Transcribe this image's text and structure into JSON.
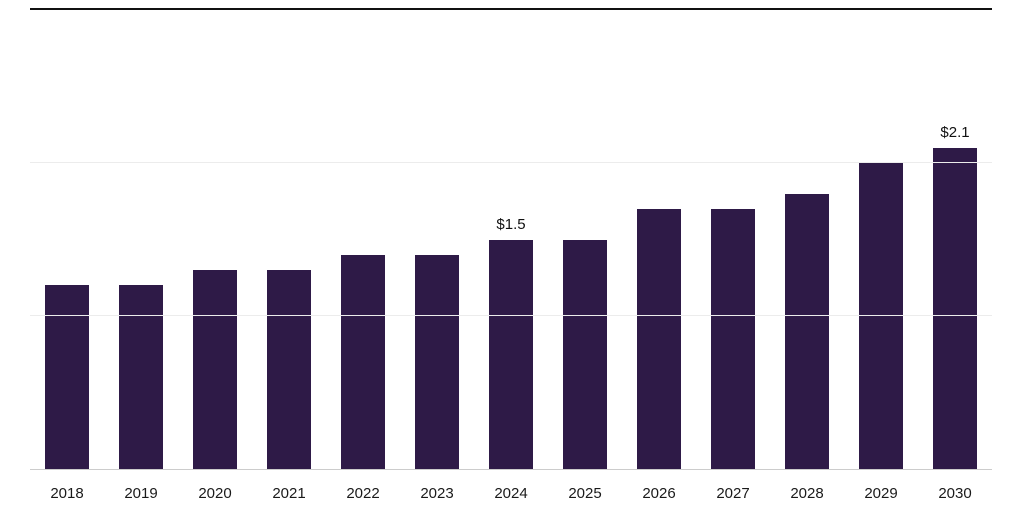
{
  "chart_data": {
    "type": "bar",
    "title": "",
    "xlabel": "",
    "ylabel": "",
    "categories": [
      "2018",
      "2019",
      "2020",
      "2021",
      "2022",
      "2023",
      "2024",
      "2025",
      "2026",
      "2027",
      "2028",
      "2029",
      "2030"
    ],
    "values": [
      1.2,
      1.2,
      1.3,
      1.3,
      1.4,
      1.4,
      1.5,
      1.5,
      1.7,
      1.7,
      1.8,
      2.0,
      2.1
    ],
    "data_labels": {
      "2024": "$1.5",
      "2030": "$2.1"
    },
    "ylim": [
      0,
      3
    ],
    "gridlines": [
      1,
      2
    ],
    "grid": "on",
    "legend": "none",
    "bar_color": "#2e1a47",
    "gridline_color": "#ececec",
    "axis_line_color": "#cccccc",
    "top_border_color": "#111111",
    "label_color": "#1a1a1a"
  }
}
